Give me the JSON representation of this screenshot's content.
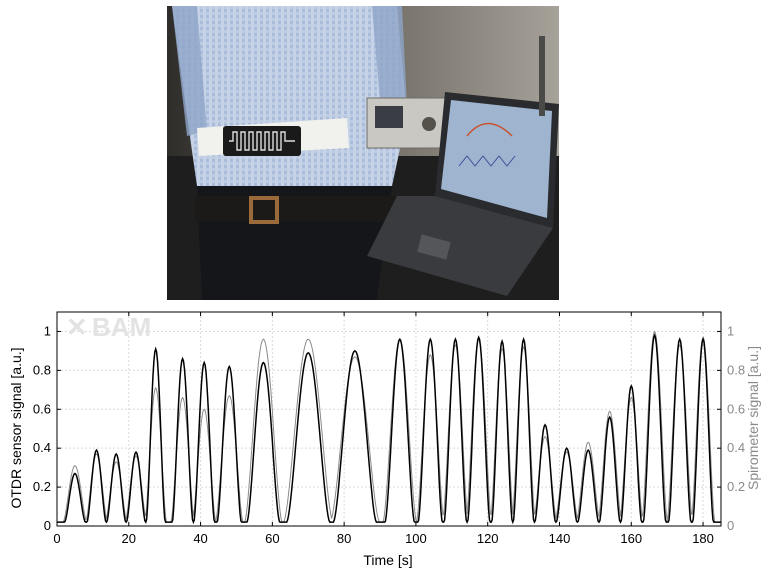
{
  "photo": {
    "description": "Person wearing a white elastic belt with an embedded serpentine optical fibre sensor; OTDR instrument and laptop on a lab bench",
    "belt_sensor_icon": "serpentine-fiber-icon"
  },
  "watermark": {
    "text": "BAM"
  },
  "chart_data": {
    "type": "line",
    "xlabel": "Time [s]",
    "ylabel": "OTDR sensor signal [a.u.]",
    "y2label": "Spirometer signal [a.u.]",
    "xlim": [
      0,
      185
    ],
    "ylim": [
      0,
      1.1
    ],
    "y2lim": [
      0,
      1.1
    ],
    "grid": true,
    "x_ticks": [
      0,
      20,
      40,
      60,
      80,
      100,
      120,
      140,
      160,
      180
    ],
    "x_tick_labels": [
      "0",
      "20",
      "40",
      "60",
      "80",
      "100",
      "120",
      "140",
      "160",
      "180"
    ],
    "y_ticks": [
      0,
      0.2,
      0.4,
      0.6,
      0.8,
      1
    ],
    "y_tick_labels": [
      "0",
      "0.2",
      "0.4",
      "0.6",
      "0.8",
      "1"
    ],
    "y2_tick_labels": [
      "0",
      "0.2",
      "0.4",
      "0.6",
      "0.8",
      "1"
    ],
    "colors": {
      "otdr": "#000000",
      "spirometer": "#8a8a8a",
      "grid": "#d9d9d9",
      "right_axis": "#8a8a8a"
    },
    "breaths": [
      {
        "t": 5,
        "otdr": 0.27,
        "spiro": 0.31
      },
      {
        "t": 11,
        "otdr": 0.39,
        "spiro": 0.37
      },
      {
        "t": 16.5,
        "otdr": 0.37,
        "spiro": 0.33
      },
      {
        "t": 22,
        "otdr": 0.38,
        "spiro": 0.36
      },
      {
        "t": 27.5,
        "otdr": 0.91,
        "spiro": 0.71
      },
      {
        "t": 35,
        "otdr": 0.86,
        "spiro": 0.66
      },
      {
        "t": 41,
        "otdr": 0.84,
        "spiro": 0.6
      },
      {
        "t": 48,
        "otdr": 0.82,
        "spiro": 0.67
      },
      {
        "t": 57.5,
        "otdr": 0.84,
        "spiro": 0.96
      },
      {
        "t": 70,
        "otdr": 0.89,
        "spiro": 0.96
      },
      {
        "t": 83,
        "otdr": 0.9,
        "spiro": 0.87
      },
      {
        "t": 95.5,
        "otdr": 0.96,
        "spiro": 0.96
      },
      {
        "t": 104,
        "otdr": 0.96,
        "spiro": 0.88
      },
      {
        "t": 111,
        "otdr": 0.96,
        "spiro": 0.93
      },
      {
        "t": 117.5,
        "otdr": 0.97,
        "spiro": 0.96
      },
      {
        "t": 124,
        "otdr": 0.95,
        "spiro": 0.91
      },
      {
        "t": 130,
        "otdr": 0.96,
        "spiro": 0.92
      },
      {
        "t": 136,
        "otdr": 0.52,
        "spiro": 0.46
      },
      {
        "t": 142,
        "otdr": 0.4,
        "spiro": 0.38
      },
      {
        "t": 148,
        "otdr": 0.39,
        "spiro": 0.43
      },
      {
        "t": 154,
        "otdr": 0.56,
        "spiro": 0.59
      },
      {
        "t": 160,
        "otdr": 0.72,
        "spiro": 0.66
      },
      {
        "t": 166.5,
        "otdr": 0.98,
        "spiro": 1.0
      },
      {
        "t": 173.5,
        "otdr": 0.96,
        "spiro": 0.93
      },
      {
        "t": 180,
        "otdr": 0.96,
        "spiro": 0.97
      }
    ]
  }
}
